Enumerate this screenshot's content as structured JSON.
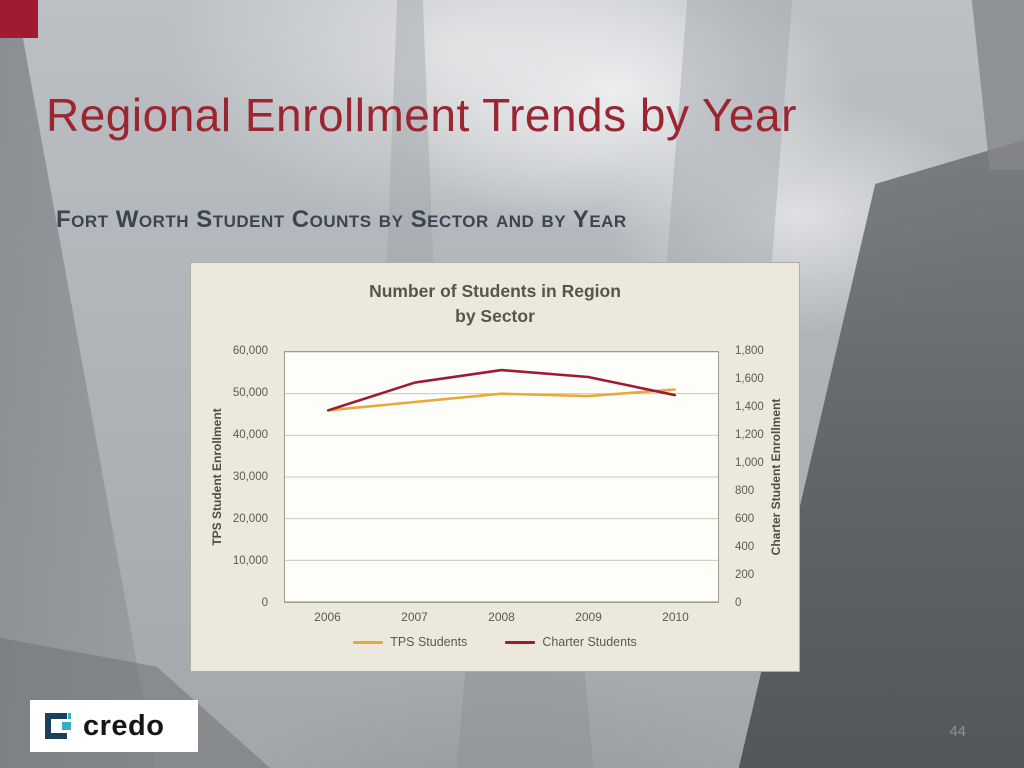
{
  "slide": {
    "title": "Regional Enrollment Trends by Year",
    "subtitle": "Fort Worth Student Counts by Sector and by Year",
    "page_number": "44",
    "logo": {
      "text": "credo"
    }
  },
  "chart_data": {
    "type": "line",
    "title": "Number of Students in Region by Sector",
    "title_lines": [
      "Number of Students in Region",
      "by Sector"
    ],
    "categories": [
      "2006",
      "2007",
      "2008",
      "2009",
      "2010"
    ],
    "series": [
      {
        "name": "TPS Students",
        "axis": "left",
        "color": "#E9A83B",
        "values": [
          46000,
          48000,
          50000,
          49400,
          51000
        ]
      },
      {
        "name": "Charter Students",
        "axis": "right",
        "color": "#9E1B32",
        "values": [
          1380,
          1580,
          1670,
          1620,
          1490
        ]
      }
    ],
    "left_axis": {
      "label": "TPS Student Enrollment",
      "min": 0,
      "max": 60000,
      "tick_step": 10000,
      "ticks": [
        "60,000",
        "50,000",
        "40,000",
        "30,000",
        "20,000",
        "10,000",
        "0"
      ]
    },
    "right_axis": {
      "label": "Charter Student Enrollment",
      "min": 0,
      "max": 1800,
      "tick_step": 200,
      "ticks": [
        "1,800",
        "1,600",
        "1,400",
        "1,200",
        "1,000",
        "800",
        "600",
        "400",
        "200",
        "0"
      ]
    },
    "grid": true,
    "legend_position": "bottom"
  },
  "colors": {
    "title": "#9B2531",
    "subtitle": "#3A4550",
    "accent_square": "#9E1B32",
    "chart_background": "#ECE9DC",
    "tps_line": "#E9A83B",
    "charter_line": "#9E1B32"
  }
}
